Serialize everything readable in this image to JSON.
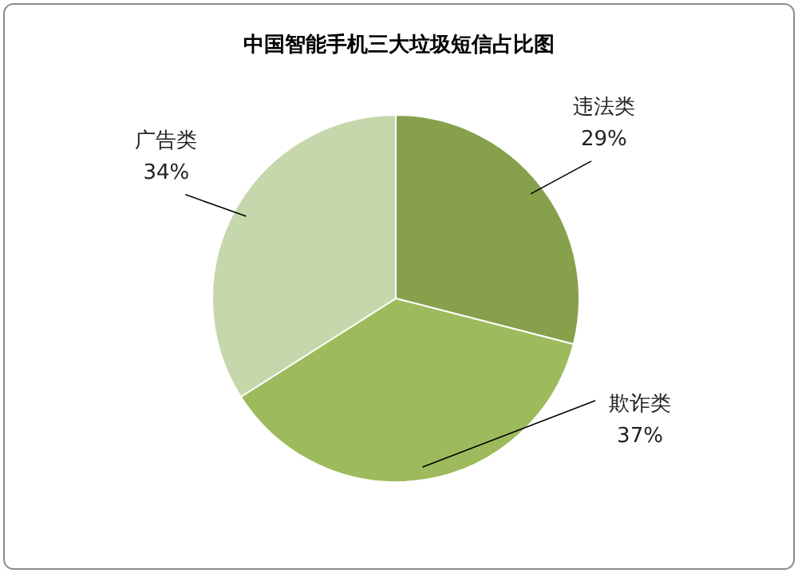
{
  "chart_data": {
    "type": "pie",
    "title": "中国智能手机三大垃圾短信占比图",
    "categories": [
      "违法类",
      "欺诈类",
      "广告类"
    ],
    "values": [
      29,
      37,
      34
    ],
    "colors": [
      "#86a04c",
      "#9dbb5c",
      "#c6d7ab"
    ],
    "value_labels": [
      "29%",
      "37%",
      "34%"
    ],
    "legend": false
  }
}
